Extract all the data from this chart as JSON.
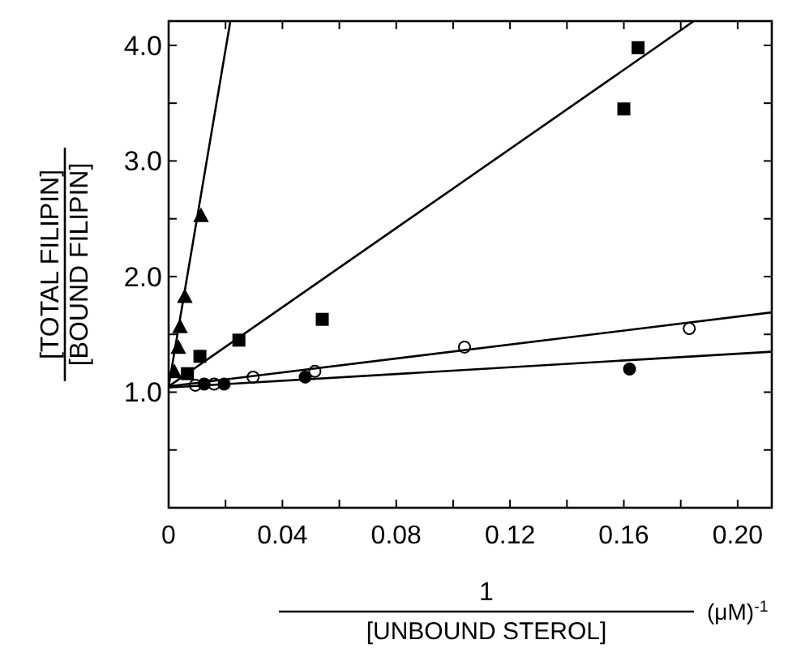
{
  "chart_data": {
    "type": "scatter",
    "xlabel": "1 [UNBOUND STEROL] (μM)$^{-1}$",
    "ylabel": "[TOTAL FILIPIN] [BOUND FILIPIN]",
    "xlim": [
      0,
      0.212
    ],
    "ylim": [
      0,
      4.21
    ],
    "xticks": [
      0,
      {
        "value": 0.02,
        "label": null
      },
      0.04,
      {
        "value": 0.06,
        "label": null
      },
      0.08,
      {
        "value": 0.1,
        "label": null
      },
      0.12,
      {
        "value": 0.14,
        "label": null
      },
      0.16,
      {
        "value": 0.18,
        "label": null
      },
      {
        "value": 0.2,
        "label": "0.20"
      }
    ],
    "yticks": [
      {
        "value": 0.5,
        "label": null
      },
      {
        "value": 1,
        "label": "1.0"
      },
      {
        "value": 1.5,
        "label": null
      },
      {
        "value": 2,
        "label": "2.0"
      },
      {
        "value": 2.5,
        "label": null
      },
      {
        "value": 3,
        "label": "3.0"
      },
      {
        "value": 3.5,
        "label": null
      },
      {
        "value": 4,
        "label": "4.0"
      }
    ],
    "grid": false,
    "series": [
      {
        "marker": "triangle",
        "color": "#000000",
        "x": [
          0.002,
          0.0034,
          0.004,
          0.0057,
          0.0114
        ],
        "values": [
          1.17,
          1.38,
          1.56,
          1.82,
          2.52
        ]
      },
      {
        "marker": "square",
        "color": "#000000",
        "x": [
          0.0066,
          0.011,
          0.0247,
          0.054,
          0.16,
          0.165
        ],
        "values": [
          1.16,
          1.31,
          1.45,
          1.63,
          3.45,
          3.98
        ]
      },
      {
        "marker": "circle",
        "color": "#ffffff",
        "x": [
          0.0094,
          0.016,
          0.0297,
          0.0514,
          0.104,
          0.183
        ],
        "values": [
          1.06,
          1.07,
          1.13,
          1.18,
          1.39,
          1.55
        ]
      },
      {
        "marker": "circle",
        "color": "#000000",
        "x": [
          0.0125,
          0.0195,
          0.048,
          0.162
        ],
        "values": [
          1.07,
          1.07,
          1.13,
          1.2
        ]
      },
      {
        "type": "line",
        "marker": "none",
        "color": "#000000",
        "x": [
          0,
          0.0217
        ],
        "values": [
          1.05,
          4.21
        ]
      },
      {
        "type": "line",
        "marker": "none",
        "color": "#000000",
        "x": [
          0,
          0.1846
        ],
        "values": [
          1.05,
          4.21
        ]
      },
      {
        "type": "line",
        "marker": "none",
        "color": "#000000",
        "x": [
          0,
          0.212
        ],
        "values": [
          1.05,
          1.69
        ]
      },
      {
        "type": "line",
        "marker": "none",
        "color": "#000000",
        "x": [
          0,
          0.212
        ],
        "values": [
          1.04,
          1.35
        ]
      }
    ]
  }
}
